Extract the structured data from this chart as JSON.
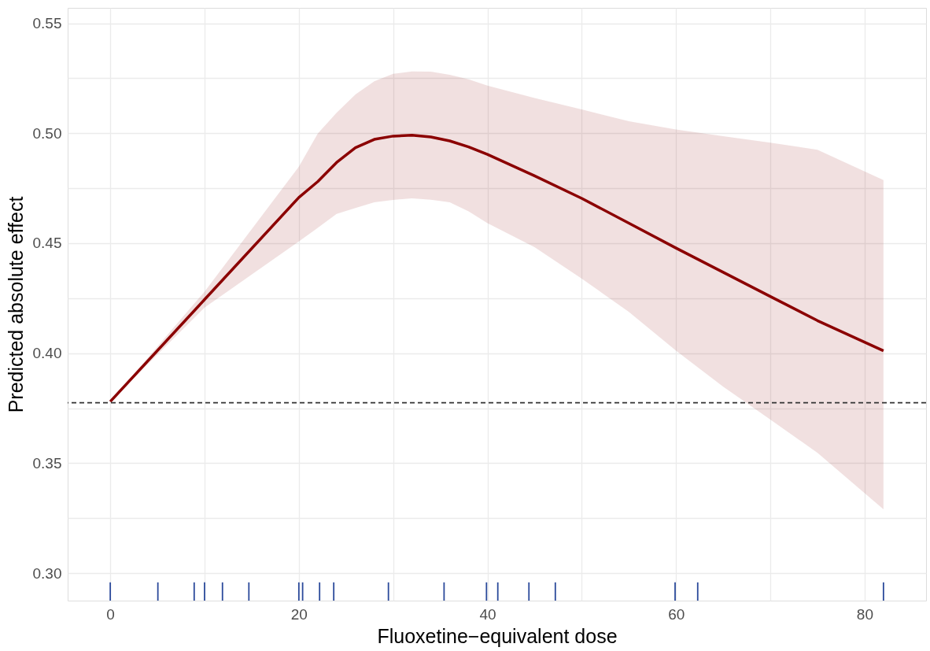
{
  "chart_data": {
    "type": "line",
    "xlabel": "Fluoxetine−equivalent dose",
    "ylabel": "Predicted absolute effect",
    "xlim": [
      -4.1,
      86.1
    ],
    "ylim": [
      0.2875,
      0.557
    ],
    "xticks": [
      0,
      {
        "value": 10,
        "label": null
      },
      20,
      {
        "value": 30,
        "label": null
      },
      40,
      {
        "value": 50,
        "label": null
      },
      60,
      {
        "value": 70,
        "label": null
      },
      80
    ],
    "yticks": [
      {
        "value": 0.3,
        "label": "0.30"
      },
      {
        "value": 0.325,
        "label": null
      },
      0.35,
      {
        "value": 0.375,
        "label": null
      },
      {
        "value": 0.4,
        "label": "0.40"
      },
      {
        "value": 0.425,
        "label": null
      },
      0.45,
      {
        "value": 0.475,
        "label": null
      },
      {
        "value": 0.5,
        "label": "0.50"
      },
      {
        "value": 0.525,
        "label": null
      },
      0.55
    ],
    "grid": true,
    "ref_lines": [
      {
        "axis": "y",
        "value": 0.3775,
        "color": "#333333",
        "line_style": "dashed"
      }
    ],
    "series": [
      {
        "color": "#8b0000",
        "x": [
          0,
          10,
          20,
          22,
          24,
          26,
          28,
          30,
          32,
          34,
          36,
          38,
          40,
          45,
          50,
          55,
          60,
          65,
          70,
          75,
          82
        ],
        "values": [
          0.378,
          0.4244,
          0.4708,
          0.478,
          0.4867,
          0.4934,
          0.4972,
          0.4987,
          0.4991,
          0.4983,
          0.4965,
          0.4938,
          0.4904,
          0.4806,
          0.4704,
          0.4591,
          0.4478,
          0.4368,
          0.4258,
          0.4148,
          0.4011
        ],
        "lower": [
          0.378,
          0.4207,
          0.4508,
          0.457,
          0.4633,
          0.466,
          0.4686,
          0.4697,
          0.4704,
          0.4698,
          0.4686,
          0.4645,
          0.4591,
          0.4482,
          0.4339,
          0.4188,
          0.4011,
          0.3848,
          0.3698,
          0.3547,
          0.329
        ],
        "upper": [
          0.378,
          0.428,
          0.4848,
          0.4998,
          0.5093,
          0.5176,
          0.5236,
          0.527,
          0.5281,
          0.528,
          0.5266,
          0.5245,
          0.5217,
          0.516,
          0.5108,
          0.5055,
          0.5017,
          0.4987,
          0.4957,
          0.4925,
          0.4787
        ]
      },
      {
        "type": "bar",
        "color": "#2b4a9b",
        "x": [
          0,
          5.05,
          8.9,
          10,
          11.9,
          14.7,
          20,
          20.4,
          22.2,
          23.7,
          29.5,
          35.4,
          39.9,
          41.1,
          44.4,
          47.2,
          59.9,
          62.3,
          82
        ],
        "values": [
          0.2958,
          0.2958,
          0.2958,
          0.2958,
          0.2958,
          0.2958,
          0.2958,
          0.2958,
          0.2958,
          0.2958,
          0.2958,
          0.2958,
          0.2958,
          0.2958,
          0.2958,
          0.2958,
          0.2958,
          0.2958,
          0.2958
        ]
      }
    ]
  }
}
